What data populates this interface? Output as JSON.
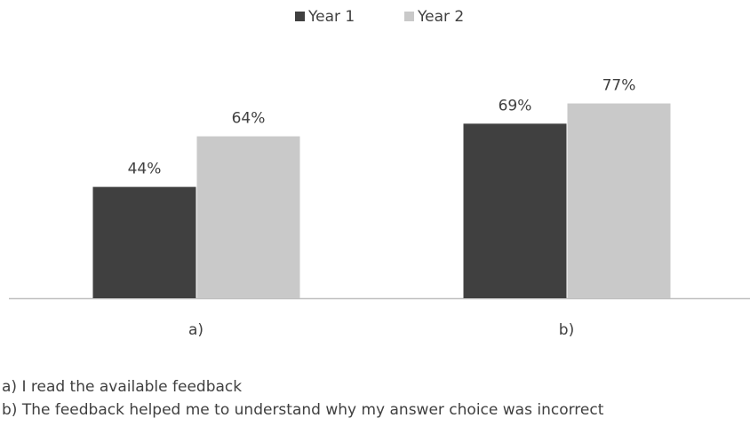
{
  "chart_data": {
    "type": "bar",
    "categories": [
      "a)",
      "b)"
    ],
    "series": [
      {
        "name": "Year 1",
        "color": "#404040",
        "values": [
          44,
          69
        ],
        "value_labels": [
          "44%",
          "69%"
        ]
      },
      {
        "name": "Year 2",
        "color": "#c9c9c9",
        "values": [
          64,
          77
        ],
        "value_labels": [
          "64%",
          "77%"
        ]
      }
    ],
    "legend": "top",
    "notes": [
      "a) I read the available feedback",
      "b) The feedback helped me to understand why my answer choice was incorrect"
    ]
  }
}
